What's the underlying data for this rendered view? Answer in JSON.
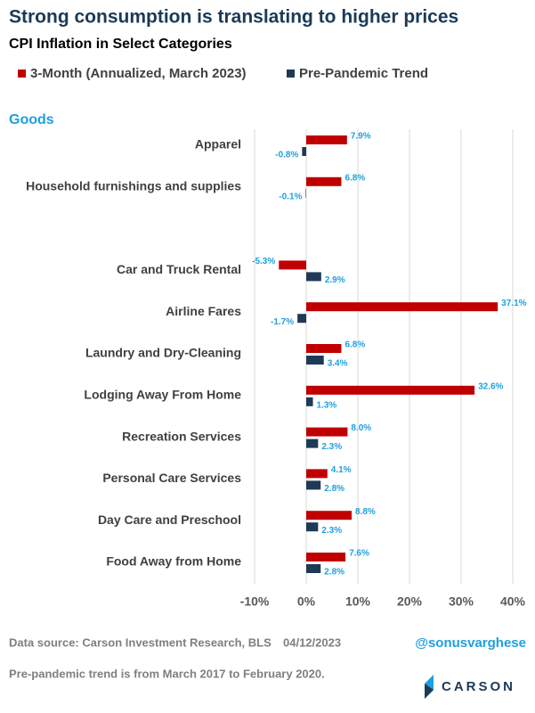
{
  "chart_data": {
    "type": "hbar",
    "title": "Strong consumption is translating to higher prices",
    "subtitle": "CPI Inflation in Select Categories",
    "section_label": "Goods",
    "categories": [
      "Apparel",
      "Household furnishings and supplies",
      null,
      "Car and Truck Rental",
      "Airline Fares",
      "Laundry and Dry-Cleaning",
      "Lodging Away From Home",
      "Recreation Services",
      "Personal Care Services",
      "Day Care and Preschool",
      "Food Away from Home"
    ],
    "series": [
      {
        "name": "3-Month (Annualized, March 2023)",
        "color": "#c00000",
        "values": [
          7.9,
          6.8,
          null,
          -5.3,
          37.1,
          6.8,
          32.6,
          8.0,
          4.1,
          8.8,
          7.6
        ],
        "value_labels": [
          "7.9%",
          "6.8%",
          null,
          "-5.3%",
          "37.1%",
          "6.8%",
          "32.6%",
          "8.0%",
          "4.1%",
          "8.8%",
          "7.6%"
        ]
      },
      {
        "name": "Pre-Pandemic Trend",
        "color": "#1f3a56",
        "values": [
          -0.8,
          -0.1,
          null,
          2.9,
          -1.7,
          3.4,
          1.3,
          2.3,
          2.8,
          2.3,
          2.8
        ],
        "value_labels": [
          "-0.8%",
          "-0.1%",
          null,
          "2.9%",
          "-1.7%",
          "3.4%",
          "1.3%",
          "2.3%",
          "2.8%",
          "2.3%",
          "2.8%"
        ]
      }
    ],
    "xlim": [
      -10,
      40
    ],
    "xticks": [
      {
        "value": -10,
        "label": "-10%"
      },
      {
        "value": 0,
        "label": "0%"
      },
      {
        "value": 10,
        "label": "10%"
      },
      {
        "value": 20,
        "label": "20%"
      },
      {
        "value": 30,
        "label": "30%"
      },
      {
        "value": 40,
        "label": "40%"
      }
    ],
    "grid": true,
    "value_label_color": "#1f9fe0",
    "source": "Data source: Carson Investment Research, BLS",
    "date": "04/12/2023",
    "handle": "@sonusvarghese",
    "note": "Pre-pandemic trend is from March 2017 to February 2020.",
    "logo": "CARSON"
  }
}
